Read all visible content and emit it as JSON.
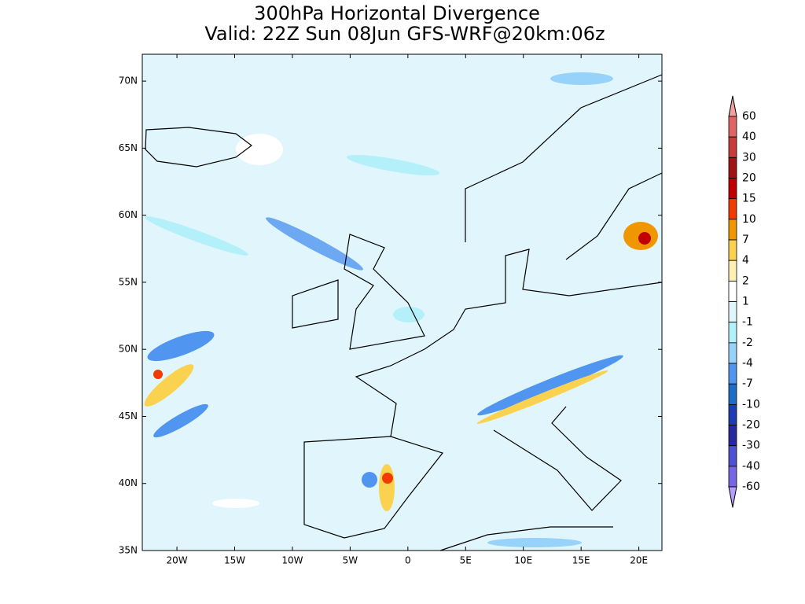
{
  "title": [
    "300hPa Horizontal Divergence",
    "Valid: 22Z Sun 08Jun GFS-WRF@20km:06z"
  ],
  "map": {
    "xlim": [
      -23,
      22
    ],
    "ylim": [
      35,
      72
    ],
    "lat_ticks": [
      {
        "value": 70,
        "label": "70N"
      },
      {
        "value": 65,
        "label": "65N"
      },
      {
        "value": 60,
        "label": "60N"
      },
      {
        "value": 55,
        "label": "55N"
      },
      {
        "value": 50,
        "label": "50N"
      },
      {
        "value": 45,
        "label": "45N"
      },
      {
        "value": 40,
        "label": "40N"
      },
      {
        "value": 35,
        "label": "35N"
      }
    ],
    "lon_ticks": [
      {
        "value": -20,
        "label": "20W"
      },
      {
        "value": -15,
        "label": "15W"
      },
      {
        "value": -10,
        "label": "10W"
      },
      {
        "value": -5,
        "label": "5W"
      },
      0,
      {
        "value": 5,
        "label": "5E"
      },
      {
        "value": 10,
        "label": "10E"
      },
      {
        "value": 15,
        "label": "15E"
      },
      {
        "value": 20,
        "label": "20E"
      }
    ],
    "background": "#e1f6fc"
  },
  "colorbar": {
    "levels": [
      60,
      40,
      30,
      20,
      15,
      10,
      7,
      4,
      2,
      1,
      -1,
      -2,
      -4,
      -7,
      -10,
      -20,
      -30,
      -40,
      -60
    ],
    "colors": [
      "#f0a0a0",
      "#e06464",
      "#c83c3c",
      "#a01414",
      "#c00000",
      "#f03c00",
      "#f09600",
      "#fad250",
      "#fff0b4",
      "#ffffff",
      "#e1f6fc",
      "#b4f0fa",
      "#96d2fa",
      "#5096f0",
      "#1e6ec8",
      "#1e3cb4",
      "#2828a0",
      "#5050d2",
      "#7864e6",
      "#b4a0fa"
    ]
  }
}
